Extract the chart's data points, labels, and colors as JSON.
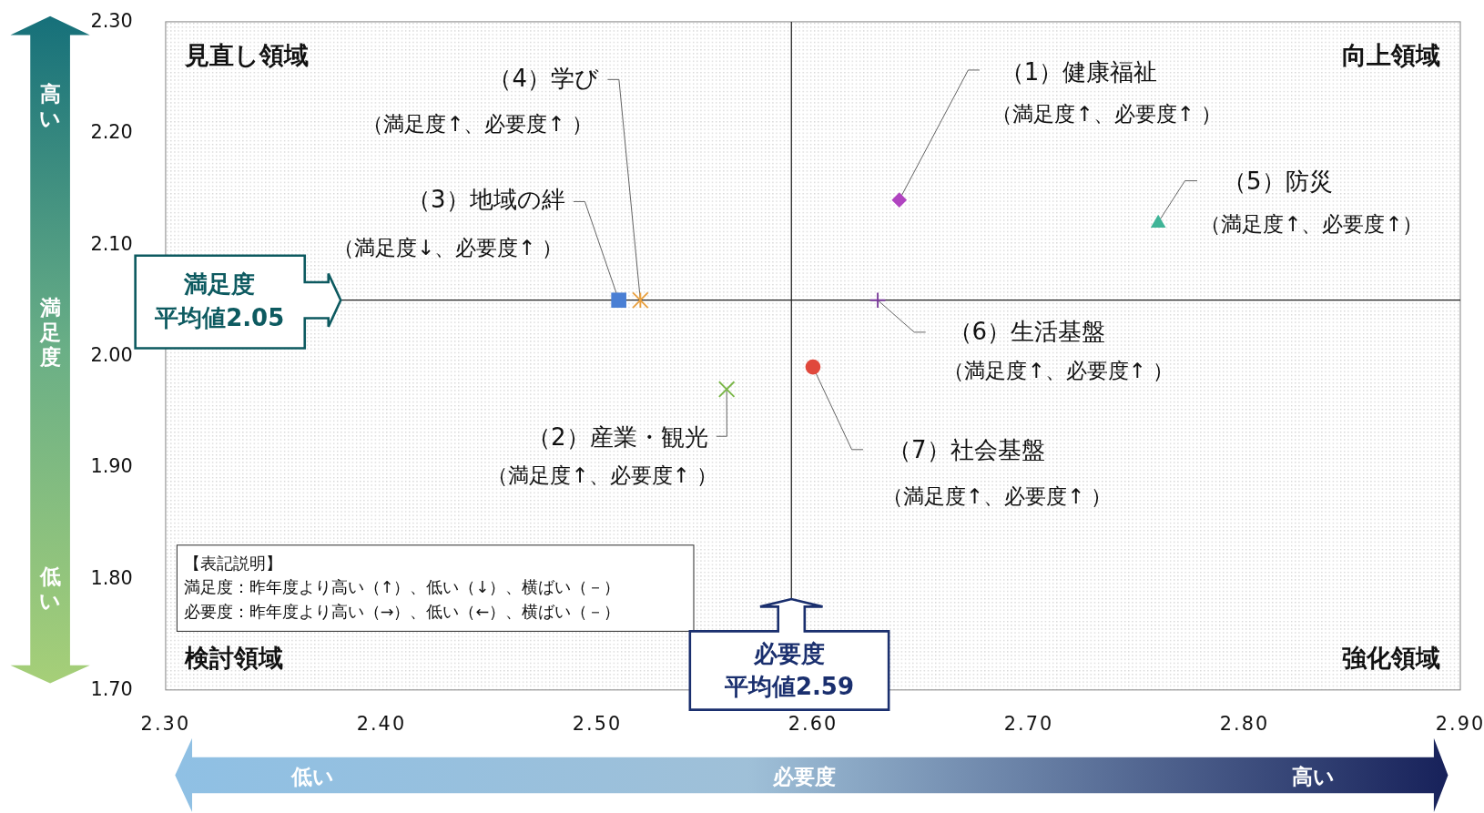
{
  "chart_data": {
    "type": "scatter",
    "xlabel": "必要度",
    "ylabel": "満足度",
    "xlim": [
      2.3,
      2.9
    ],
    "xticks": [
      {
        "value": 2.3,
        "label": "2.30"
      },
      {
        "value": 2.4,
        "label": "2.40"
      },
      {
        "value": 2.5,
        "label": "2.50"
      },
      {
        "value": 2.6,
        "label": "2.60"
      },
      {
        "value": 2.7,
        "label": "2.70"
      },
      {
        "value": 2.8,
        "label": "2.80"
      },
      {
        "value": 2.9,
        "label": "2.90"
      }
    ],
    "ylim": [
      1.7,
      2.3
    ],
    "yticks": [
      {
        "value": 1.7,
        "label": "1.70"
      },
      {
        "value": 1.8,
        "label": "1.80"
      },
      {
        "value": 1.9,
        "label": "1.90"
      },
      {
        "value": 2.0,
        "label": "2.00"
      },
      {
        "value": 2.1,
        "label": "2.10"
      },
      {
        "value": 2.2,
        "label": "2.20"
      },
      {
        "value": 2.3,
        "label": "2.30"
      }
    ],
    "grid": false,
    "series": [
      {
        "name": "（1）健康福祉",
        "color": "#b044c0",
        "marker": "diamond",
        "x": [
          2.64
        ],
        "values": [
          2.14
        ]
      },
      {
        "name": "（2）産業・観光",
        "color": "#7ab648",
        "marker": "x",
        "x": [
          2.56
        ],
        "values": [
          1.97
        ]
      },
      {
        "name": "（3）地域の絆",
        "color": "#4a7fd4",
        "marker": "square",
        "x": [
          2.51
        ],
        "values": [
          2.05
        ]
      },
      {
        "name": "（4）学び",
        "color": "#e8a040",
        "x": [
          2.52
        ],
        "values": [
          2.05
        ]
      },
      {
        "name": "（5）防災",
        "color": "#3fb497",
        "marker": "triangle",
        "x": [
          2.76
        ],
        "values": [
          2.12
        ]
      },
      {
        "name": "（6）生活基盤",
        "color": "#7a3a9a",
        "marker": "cross",
        "x": [
          2.63
        ],
        "values": [
          2.05
        ]
      },
      {
        "name": "（7）社会基盤",
        "color": "#e0483c",
        "marker": "circle",
        "x": [
          2.6
        ],
        "values": [
          1.99
        ]
      }
    ],
    "ref_lines": [
      {
        "axis": "y",
        "value": 2.05,
        "label": "満足度平均値2.05",
        "color": "#222222"
      },
      {
        "axis": "x",
        "value": 2.59,
        "label": "必要度平均値2.59",
        "color": "#222222"
      }
    ],
    "annotations": [
      "見直し領域",
      "向上領域",
      "検討領域",
      "強化領域",
      "【表記説明】",
      "満足度：昨年度より高い（↑）、低い（↓）、横ばい（－）",
      "必要度：昨年度より高い（→）、低い（←）、横ばい（－）",
      "高い",
      "低い",
      "低い",
      "高い",
      "（満足度↑、必要度↑ ）",
      "（満足度↑、必要度↑ ）",
      "（満足度↓、必要度↑ ）",
      "（満足度↑、必要度↑ ）",
      "（満足度↑、必要度↑）",
      "（満足度↑、必要度↑ ）",
      "（満足度↑、必要度↑ ）"
    ]
  }
}
